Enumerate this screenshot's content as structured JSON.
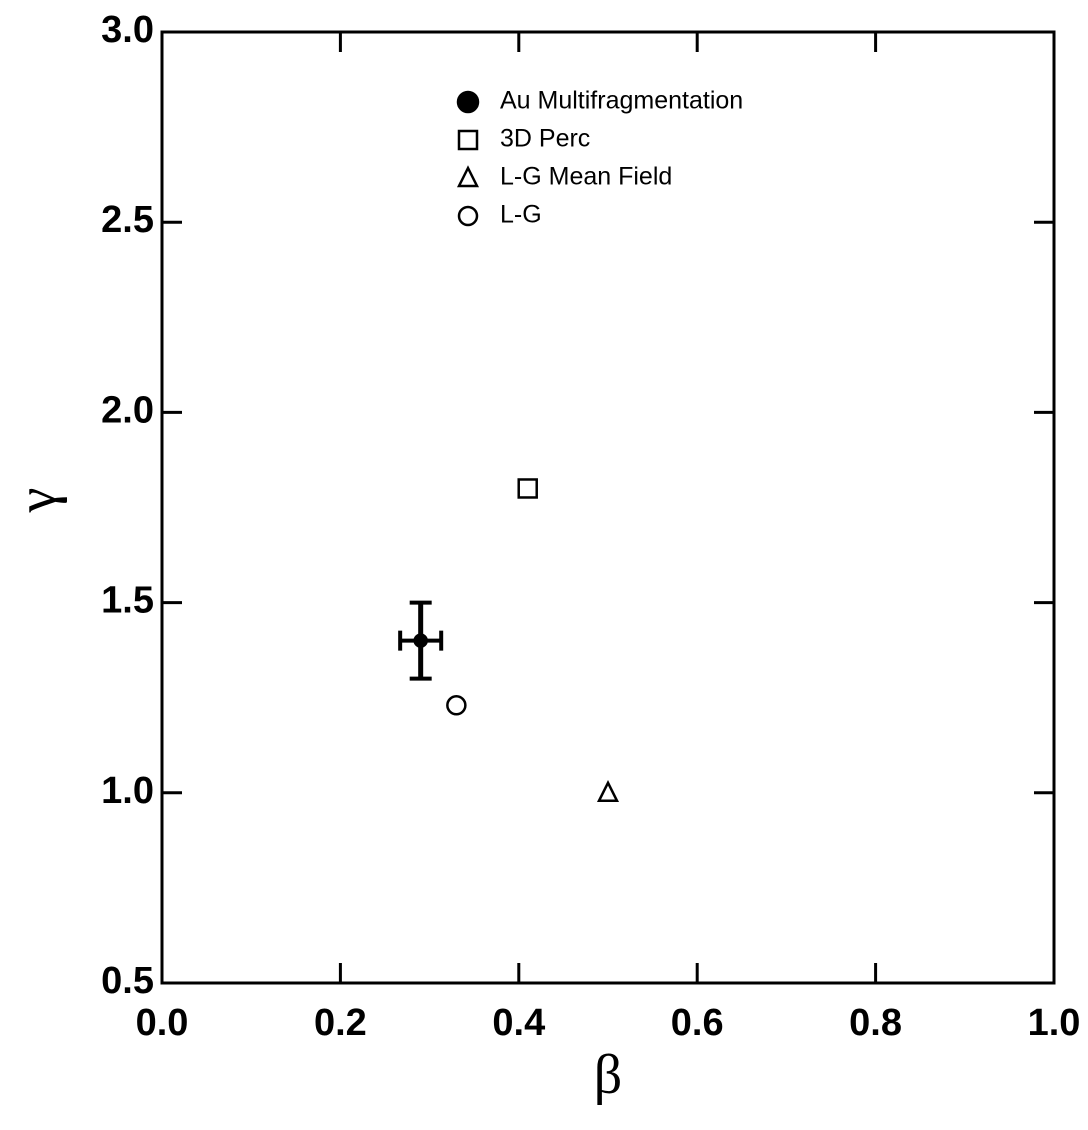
{
  "chart_data": {
    "type": "scatter",
    "xlabel": "β",
    "ylabel": "γ",
    "xlim": [
      0,
      1
    ],
    "ylim": [
      0.5,
      3
    ],
    "xticks": [
      {
        "value": 0,
        "label": "0.0"
      },
      0.2,
      0.4,
      0.6,
      0.8,
      {
        "value": 1,
        "label": "1.0"
      }
    ],
    "yticks": [
      0.5,
      {
        "value": 1,
        "label": "1.0"
      },
      1.5,
      {
        "value": 2,
        "label": "2.0"
      },
      2.5,
      {
        "value": 3,
        "label": "3.0"
      }
    ],
    "series": [
      {
        "name": "Au  Multifragmentation",
        "marker": "filled-circle",
        "color": "#000000",
        "x": [
          0.29
        ],
        "values": [
          1.4
        ],
        "xerr": [
          0.023
        ],
        "yerr": [
          0.1
        ]
      },
      {
        "name": "3D Perc",
        "marker": "square",
        "color": "#000000",
        "x": [
          0.41
        ],
        "values": [
          1.8
        ]
      },
      {
        "name": "L-G Mean Field",
        "marker": "triangle",
        "color": "#000000",
        "x": [
          0.5
        ],
        "values": [
          1.0
        ]
      },
      {
        "name": "L-G",
        "marker": "circle",
        "color": "#000000",
        "x": [
          0.33
        ],
        "values": [
          1.23
        ]
      }
    ]
  }
}
